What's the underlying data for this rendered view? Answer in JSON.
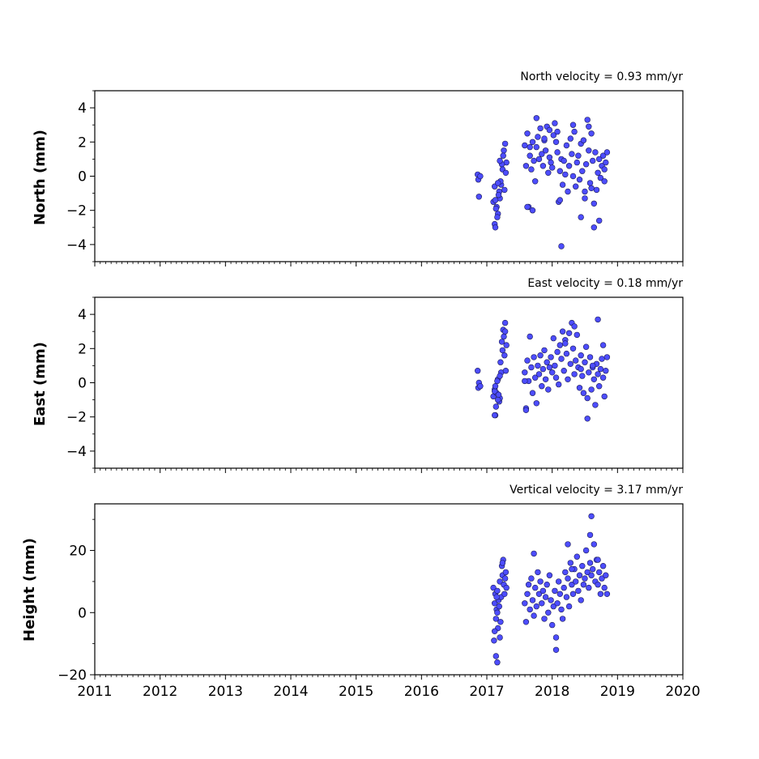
{
  "chart_data": [
    {
      "type": "scatter",
      "title": "North velocity = 0.93 mm/yr",
      "ylabel": "North (mm)",
      "xlabel": "",
      "xlim": [
        2011,
        2020
      ],
      "ylim": [
        -5,
        5
      ],
      "yticks": [
        -4,
        -2,
        0,
        2,
        4
      ],
      "ytick_labels": [
        "−4",
        "−2",
        "0",
        "2",
        "4"
      ],
      "xticks": [
        2011,
        2012,
        2013,
        2014,
        2015,
        2016,
        2017,
        2018,
        2019,
        2020
      ],
      "xtick_labels": [],
      "grid": false,
      "marker_color": "#4d4dff",
      "series": [
        {
          "x": [
            2016.86,
            2016.87,
            2016.88,
            2016.9,
            2017.1,
            2017.12,
            2017.13,
            2017.15,
            2017.17,
            2017.19,
            2017.2,
            2017.22,
            2017.24,
            2017.26,
            2017.28,
            2017.3,
            2017.12,
            2017.14,
            2017.16,
            2017.18,
            2017.21,
            2017.23,
            2017.25,
            2017.27,
            2017.29,
            2017.13,
            2017.17,
            2017.2,
            2017.58,
            2017.6,
            2017.62,
            2017.64,
            2017.66,
            2017.68,
            2017.7,
            2017.72,
            2017.74,
            2017.76,
            2017.78,
            2017.8,
            2017.82,
            2017.84,
            2017.86,
            2017.88,
            2017.9,
            2017.92,
            2017.94,
            2017.96,
            2017.98,
            2018.0,
            2018.02,
            2018.04,
            2018.06,
            2018.08,
            2018.1,
            2018.12,
            2018.14,
            2018.16,
            2018.18,
            2018.2,
            2018.22,
            2018.24,
            2018.26,
            2018.28,
            2018.3,
            2018.32,
            2018.34,
            2018.36,
            2018.38,
            2018.4,
            2018.42,
            2018.44,
            2018.46,
            2018.48,
            2018.5,
            2018.52,
            2018.54,
            2018.56,
            2018.58,
            2018.6,
            2018.62,
            2018.64,
            2018.66,
            2018.68,
            2018.7,
            2018.72,
            2018.74,
            2018.76,
            2018.78,
            2018.8,
            2018.82,
            2018.84,
            2017.7,
            2018.14,
            2018.56,
            2018.64,
            2017.96,
            2018.44,
            2017.76,
            2018.72,
            2018.12,
            2017.62,
            2017.88,
            2018.32,
            2018.5,
            2018.8,
            2017.66,
            2018.08,
            2018.6
          ],
          "y": [
            0.1,
            -0.2,
            -1.2,
            0.0,
            -1.5,
            -2.8,
            -3.0,
            -1.8,
            -2.2,
            -0.9,
            -1.3,
            -0.5,
            0.4,
            1.5,
            1.9,
            0.8,
            -0.6,
            -1.9,
            -2.4,
            -1.1,
            -0.3,
            0.7,
            1.2,
            -0.8,
            0.2,
            -1.4,
            -0.4,
            0.9,
            1.8,
            0.6,
            2.5,
            -1.8,
            1.2,
            0.4,
            2.0,
            0.9,
            -0.3,
            1.7,
            2.3,
            1.0,
            2.8,
            1.3,
            0.6,
            2.1,
            1.5,
            2.9,
            0.2,
            1.1,
            0.8,
            0.5,
            2.4,
            3.1,
            2.0,
            1.4,
            -1.5,
            0.3,
            1.0,
            -0.5,
            0.9,
            0.1,
            1.8,
            -0.9,
            0.6,
            2.2,
            1.3,
            0.0,
            2.6,
            -0.6,
            0.8,
            1.2,
            -0.2,
            1.9,
            0.3,
            2.1,
            -1.3,
            0.7,
            3.3,
            1.5,
            -0.4,
            2.5,
            0.9,
            -1.6,
            1.4,
            -0.8,
            0.2,
            1.0,
            -0.1,
            0.6,
            1.2,
            -0.3,
            0.8,
            1.4,
            -2.0,
            -4.1,
            2.9,
            -3.0,
            2.7,
            -2.4,
            3.4,
            -2.6,
            -1.4,
            -1.8,
            2.2,
            3.0,
            -0.9,
            0.4,
            1.7,
            2.6,
            -0.7
          ]
        }
      ]
    },
    {
      "type": "scatter",
      "title": "East velocity = 0.18 mm/yr",
      "ylabel": "East (mm)",
      "xlabel": "",
      "xlim": [
        2011,
        2020
      ],
      "ylim": [
        -5,
        5
      ],
      "yticks": [
        -4,
        -2,
        0,
        2,
        4
      ],
      "ytick_labels": [
        "−4",
        "−2",
        "0",
        "2",
        "4"
      ],
      "xticks": [
        2011,
        2012,
        2013,
        2014,
        2015,
        2016,
        2017,
        2018,
        2019,
        2020
      ],
      "xtick_labels": [],
      "grid": false,
      "marker_color": "#4d4dff",
      "series": [
        {
          "x": [
            2016.86,
            2016.87,
            2016.88,
            2016.9,
            2017.1,
            2017.12,
            2017.13,
            2017.15,
            2017.17,
            2017.19,
            2017.2,
            2017.22,
            2017.24,
            2017.26,
            2017.28,
            2017.3,
            2017.12,
            2017.14,
            2017.16,
            2017.18,
            2017.21,
            2017.23,
            2017.25,
            2017.27,
            2017.29,
            2017.13,
            2017.17,
            2017.2,
            2017.58,
            2017.6,
            2017.62,
            2017.64,
            2017.66,
            2017.68,
            2017.7,
            2017.72,
            2017.74,
            2017.76,
            2017.78,
            2017.8,
            2017.82,
            2017.84,
            2017.86,
            2017.88,
            2017.9,
            2017.92,
            2017.94,
            2017.96,
            2017.98,
            2018.0,
            2018.02,
            2018.04,
            2018.06,
            2018.08,
            2018.1,
            2018.12,
            2018.14,
            2018.16,
            2018.18,
            2018.2,
            2018.22,
            2018.24,
            2018.26,
            2018.28,
            2018.3,
            2018.32,
            2018.34,
            2018.36,
            2018.38,
            2018.4,
            2018.42,
            2018.44,
            2018.46,
            2018.48,
            2018.5,
            2018.52,
            2018.54,
            2018.56,
            2018.58,
            2018.6,
            2018.62,
            2018.64,
            2018.66,
            2018.68,
            2018.7,
            2018.72,
            2018.74,
            2018.76,
            2018.78,
            2018.8,
            2018.82,
            2018.84,
            2017.6,
            2018.54,
            2018.7,
            2018.34,
            2017.28,
            2017.12,
            2018.2,
            2018.78,
            2017.58,
            2018.44,
            2018.62
          ],
          "y": [
            0.7,
            -0.3,
            0.0,
            -0.2,
            -0.8,
            -0.4,
            -1.9,
            -0.6,
            0.2,
            -1.1,
            -0.9,
            0.6,
            1.9,
            2.7,
            3.5,
            2.2,
            -0.5,
            -1.4,
            0.1,
            -0.7,
            1.2,
            2.4,
            3.1,
            1.6,
            0.7,
            -0.2,
            -1.0,
            0.4,
            0.6,
            -1.5,
            1.3,
            0.1,
            2.7,
            0.9,
            -0.6,
            1.5,
            0.3,
            -1.2,
            1.0,
            0.5,
            1.6,
            -0.2,
            0.8,
            1.9,
            0.2,
            1.2,
            -0.4,
            0.9,
            1.5,
            0.6,
            2.6,
            1.0,
            0.3,
            1.8,
            -0.1,
            2.2,
            1.4,
            3.0,
            0.7,
            2.5,
            1.7,
            0.2,
            2.9,
            1.1,
            3.5,
            2.0,
            0.5,
            1.3,
            2.8,
            0.9,
            -0.3,
            1.6,
            0.4,
            -0.6,
            1.2,
            2.1,
            -0.9,
            0.6,
            1.5,
            -0.4,
            0.9,
            0.2,
            -1.3,
            1.1,
            0.5,
            -0.2,
            0.8,
            1.4,
            0.3,
            -0.8,
            0.7,
            1.5,
            -1.6,
            -2.1,
            3.7,
            3.3,
            3.0,
            -1.9,
            2.3,
            2.2,
            0.1,
            0.8,
            1.0
          ]
        }
      ]
    },
    {
      "type": "scatter",
      "title": "Vertical velocity = 3.17 mm/yr",
      "ylabel": "Height (mm)",
      "xlabel": "",
      "xlim": [
        2011,
        2020
      ],
      "ylim": [
        -20,
        35
      ],
      "yticks": [
        -20,
        0,
        20
      ],
      "ytick_labels": [
        "−20",
        "0",
        "20"
      ],
      "xticks": [
        2011,
        2012,
        2013,
        2014,
        2015,
        2016,
        2017,
        2018,
        2019,
        2020
      ],
      "xtick_labels": [
        "2011",
        "2012",
        "2013",
        "2014",
        "2015",
        "2016",
        "2017",
        "2018",
        "2019",
        "2020"
      ],
      "grid": false,
      "marker_color": "#4d4dff",
      "series": [
        {
          "x": [
            2017.1,
            2017.11,
            2017.12,
            2017.13,
            2017.14,
            2017.15,
            2017.16,
            2017.17,
            2017.18,
            2017.19,
            2017.2,
            2017.21,
            2017.22,
            2017.23,
            2017.24,
            2017.25,
            2017.26,
            2017.27,
            2017.28,
            2017.29,
            2017.3,
            2017.12,
            2017.14,
            2017.16,
            2017.2,
            2017.24,
            2017.15,
            2017.58,
            2017.6,
            2017.62,
            2017.64,
            2017.66,
            2017.68,
            2017.7,
            2017.72,
            2017.74,
            2017.76,
            2017.78,
            2017.8,
            2017.82,
            2017.84,
            2017.86,
            2017.88,
            2017.9,
            2017.92,
            2017.94,
            2017.96,
            2017.98,
            2018.0,
            2018.02,
            2018.04,
            2018.06,
            2018.08,
            2018.1,
            2018.12,
            2018.14,
            2018.16,
            2018.18,
            2018.2,
            2018.22,
            2018.24,
            2018.26,
            2018.28,
            2018.3,
            2018.32,
            2018.34,
            2018.36,
            2018.38,
            2018.4,
            2018.42,
            2018.44,
            2018.46,
            2018.48,
            2018.5,
            2018.52,
            2018.54,
            2018.56,
            2018.58,
            2018.6,
            2018.62,
            2018.64,
            2018.66,
            2018.68,
            2018.7,
            2018.72,
            2018.74,
            2018.76,
            2018.78,
            2018.8,
            2018.82,
            2018.84,
            2018.6,
            2018.58,
            2018.06,
            2018.24,
            2017.72,
            2017.16,
            2018.7,
            2018.3
          ],
          "y": [
            8,
            -9,
            3,
            6,
            -2,
            1,
            7,
            -5,
            4,
            2,
            10,
            -3,
            5,
            15,
            12,
            17,
            9,
            6,
            11,
            13,
            8,
            -6,
            -14,
            0,
            -8,
            16,
            5,
            3,
            -3,
            6,
            9,
            1,
            11,
            4,
            -1,
            8,
            2,
            13,
            6,
            10,
            3,
            7,
            -2,
            5,
            9,
            0,
            12,
            4,
            -4,
            2,
            7,
            -8,
            3,
            10,
            6,
            1,
            -2,
            8,
            13,
            5,
            11,
            2,
            16,
            9,
            6,
            14,
            10,
            18,
            7,
            12,
            4,
            15,
            9,
            11,
            20,
            13,
            8,
            16,
            12,
            14,
            22,
            10,
            17,
            9,
            13,
            6,
            11,
            15,
            8,
            12,
            6,
            31,
            25,
            -12,
            22,
            19,
            -16,
            17,
            14
          ]
        }
      ]
    }
  ]
}
